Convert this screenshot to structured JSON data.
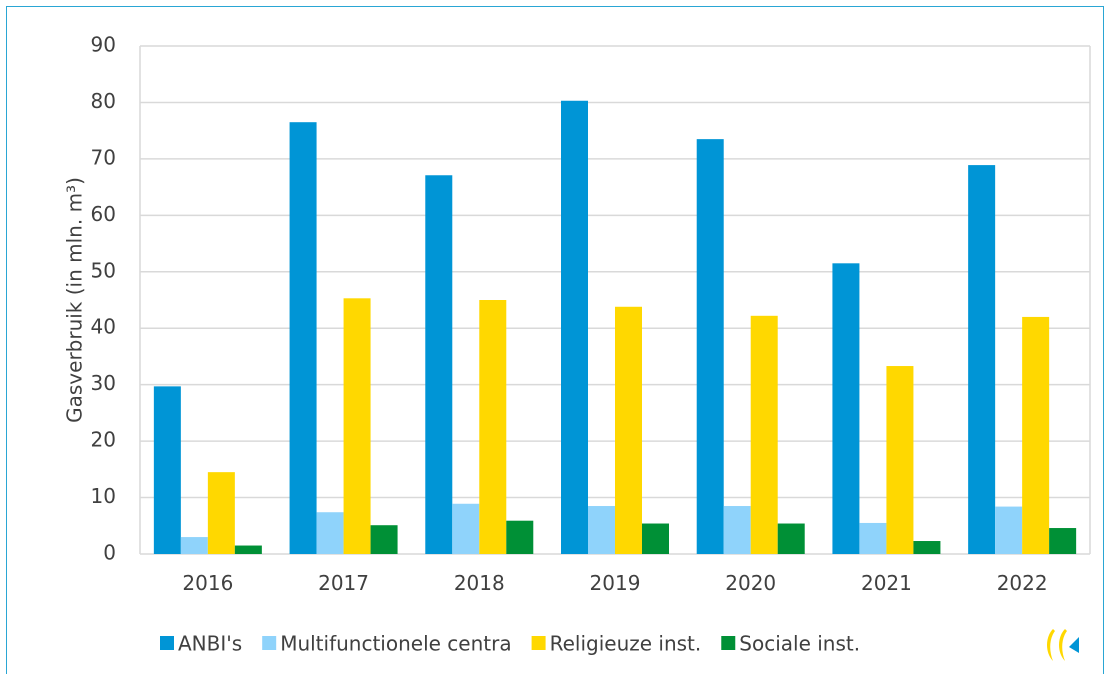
{
  "chart_data": {
    "type": "bar",
    "categories": [
      "2016",
      "2017",
      "2018",
      "2019",
      "2020",
      "2021",
      "2022"
    ],
    "series": [
      {
        "name": "ANBI's",
        "color": "#0095d6",
        "values": [
          29.7,
          76.5,
          67.1,
          80.3,
          73.5,
          51.5,
          68.9
        ]
      },
      {
        "name": "Multifunctionele centra",
        "color": "#8fd3fb",
        "values": [
          3.0,
          7.4,
          8.9,
          8.5,
          8.5,
          5.5,
          8.4
        ]
      },
      {
        "name": "Religieuze inst.",
        "color": "#ffd800",
        "values": [
          14.5,
          45.3,
          45.0,
          43.8,
          42.2,
          33.3,
          42.0
        ]
      },
      {
        "name": "Sociale inst.",
        "color": "#009036",
        "values": [
          1.5,
          5.1,
          5.9,
          5.4,
          5.4,
          2.3,
          4.6
        ]
      }
    ],
    "ylabel": "Gasverbruik (in mln. m³)",
    "ylim": [
      0,
      90
    ],
    "yticks": [
      "0",
      "10",
      "20",
      "30",
      "40",
      "50",
      "60",
      "70",
      "80",
      "90"
    ],
    "grid": true,
    "legend": "bottom"
  },
  "logo": {
    "name": "logo-icon",
    "color_primary": "#ffd800",
    "color_secondary": "#0095d6"
  }
}
